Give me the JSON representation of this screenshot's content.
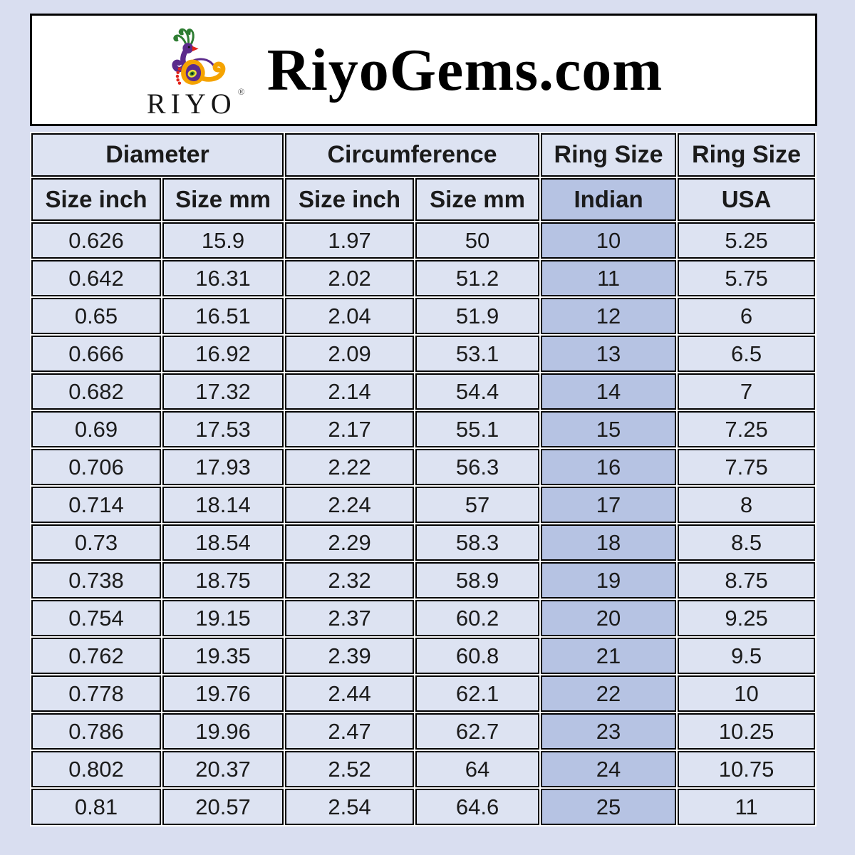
{
  "header": {
    "site_title": "RiyoGems.com",
    "logo": {
      "brand": "RIYO",
      "registered_mark": "®",
      "icon": "peacock-icon"
    }
  },
  "table": {
    "group_headers": [
      {
        "label": "Diameter",
        "colspan": "2"
      },
      {
        "label": "Circumference",
        "colspan": "2"
      },
      {
        "label": "Ring Size",
        "colspan": "1"
      },
      {
        "label": "Ring Size",
        "colspan": "1"
      }
    ],
    "column_headers": [
      "Size inch",
      "Size mm",
      "Size inch",
      "Size mm",
      "Indian",
      "USA"
    ],
    "highlighted_column": "Indian",
    "rows": [
      [
        "0.626",
        "15.9",
        "1.97",
        "50",
        "10",
        "5.25"
      ],
      [
        "0.642",
        "16.31",
        "2.02",
        "51.2",
        "11",
        "5.75"
      ],
      [
        "0.65",
        "16.51",
        "2.04",
        "51.9",
        "12",
        "6"
      ],
      [
        "0.666",
        "16.92",
        "2.09",
        "53.1",
        "13",
        "6.5"
      ],
      [
        "0.682",
        "17.32",
        "2.14",
        "54.4",
        "14",
        "7"
      ],
      [
        "0.69",
        "17.53",
        "2.17",
        "55.1",
        "15",
        "7.25"
      ],
      [
        "0.706",
        "17.93",
        "2.22",
        "56.3",
        "16",
        "7.75"
      ],
      [
        "0.714",
        "18.14",
        "2.24",
        "57",
        "17",
        "8"
      ],
      [
        "0.73",
        "18.54",
        "2.29",
        "58.3",
        "18",
        "8.5"
      ],
      [
        "0.738",
        "18.75",
        "2.32",
        "58.9",
        "19",
        "8.75"
      ],
      [
        "0.754",
        "19.15",
        "2.37",
        "60.2",
        "20",
        "9.25"
      ],
      [
        "0.762",
        "19.35",
        "2.39",
        "60.8",
        "21",
        "9.5"
      ],
      [
        "0.778",
        "19.76",
        "2.44",
        "62.1",
        "22",
        "10"
      ],
      [
        "0.786",
        "19.96",
        "2.47",
        "62.7",
        "23",
        "10.25"
      ],
      [
        "0.802",
        "20.37",
        "2.52",
        "64",
        "24",
        "10.75"
      ],
      [
        "0.81",
        "20.57",
        "2.54",
        "64.6",
        "25",
        "11"
      ]
    ]
  },
  "colors": {
    "page_background": "#d9def0",
    "cell_background": "#dde3f2",
    "indian_column_background": "#b6c3e3",
    "table_border": "#000000",
    "header_box_background": "#ffffff",
    "text": "#1b1b1b",
    "logo_purple": "#5b2a8c",
    "logo_orange": "#f5a300",
    "logo_green": "#2e7d32",
    "logo_red": "#e2231a"
  }
}
